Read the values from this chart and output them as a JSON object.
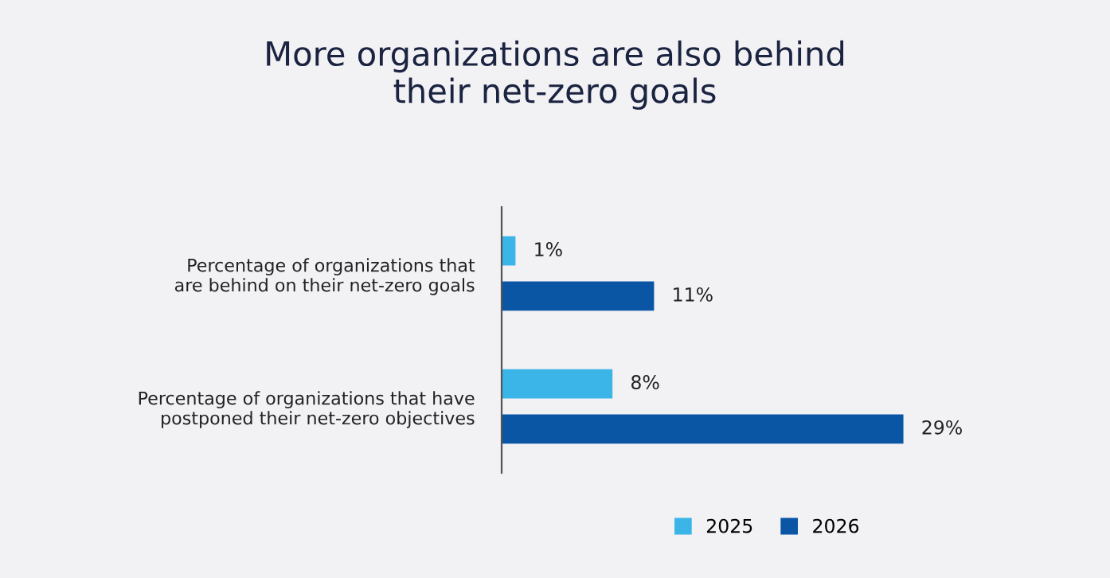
{
  "chart_data": {
    "type": "bar",
    "orientation": "horizontal",
    "title": "More organizations are also behind\ntheir net-zero goals",
    "categories": [
      "Percentage of organizations that\nare behind on their net-zero goals",
      "Percentage of organizations that have\npostponed their net-zero objectives"
    ],
    "series": [
      {
        "name": "2025",
        "color": "#3bb5e8",
        "values": [
          1,
          8
        ],
        "value_labels": [
          "1%",
          "8%"
        ]
      },
      {
        "name": "2026",
        "color": "#0a56a5",
        "values": [
          11,
          29
        ],
        "value_labels": [
          "11%",
          "29%"
        ]
      }
    ],
    "legend": "bottom",
    "grid": false,
    "tick_labels": "y"
  }
}
